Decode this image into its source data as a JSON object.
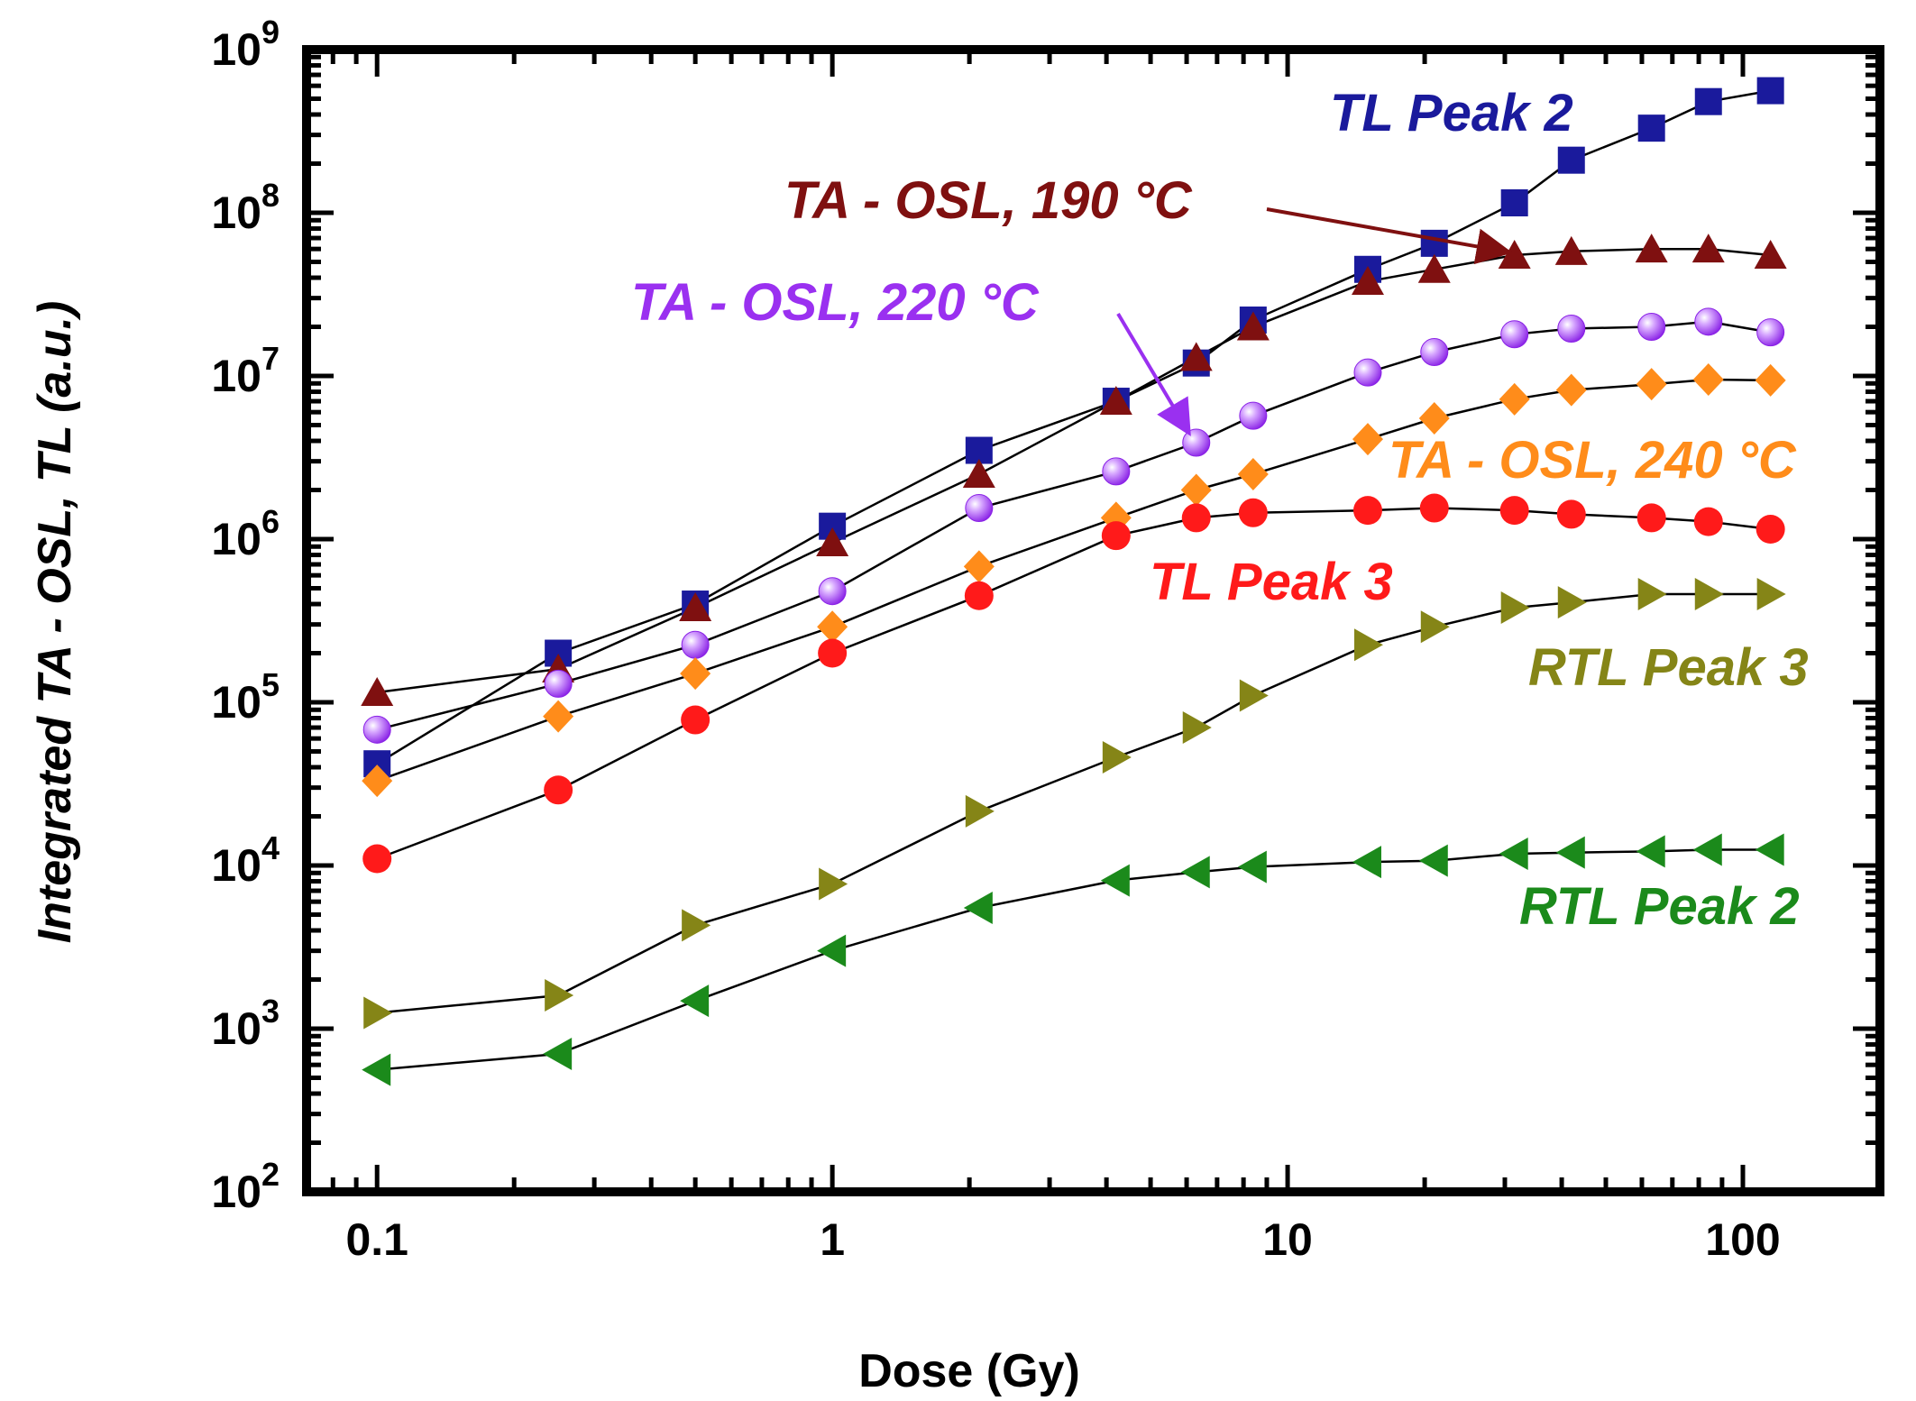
{
  "chart_data": {
    "type": "scatter",
    "title": "",
    "xlabel": "Dose (Gy)",
    "ylabel": "Integrated TA - OSL, TL (a.u.)",
    "xscale": "log",
    "yscale": "log",
    "xlim": [
      0.07,
      200
    ],
    "ylim": [
      100,
      1000000000
    ],
    "x_ticks": [
      {
        "value": 0.1,
        "label": "0.1"
      },
      {
        "value": 1,
        "label": "1"
      },
      {
        "value": 10,
        "label": "10"
      },
      {
        "value": 100,
        "label": "100"
      }
    ],
    "y_ticks": [
      {
        "value": 100,
        "base": "10",
        "exp": "2"
      },
      {
        "value": 1000,
        "base": "10",
        "exp": "3"
      },
      {
        "value": 10000,
        "base": "10",
        "exp": "4"
      },
      {
        "value": 100000,
        "base": "10",
        "exp": "5"
      },
      {
        "value": 1000000,
        "base": "10",
        "exp": "6"
      },
      {
        "value": 10000000,
        "base": "10",
        "exp": "7"
      },
      {
        "value": 100000000,
        "base": "10",
        "exp": "8"
      },
      {
        "value": 1000000000,
        "base": "10",
        "exp": "9"
      }
    ],
    "series": [
      {
        "name": "TL Peak 2",
        "color": "#1a1a9c",
        "marker": "square",
        "x": [
          0.1,
          0.25,
          0.5,
          1,
          2.1,
          4.2,
          6.3,
          8.4,
          15,
          21,
          31.5,
          42,
          63,
          84,
          115
        ],
        "y": [
          42000,
          200000,
          400000,
          1200000,
          3500000,
          7000000,
          12000000,
          22000000,
          45000000,
          65000000,
          115000000,
          210000000,
          330000000,
          480000000,
          560000000
        ]
      },
      {
        "name": "TA - OSL, 190 °C",
        "color": "#7f1010",
        "marker": "triangle-up",
        "x": [
          0.1,
          0.25,
          0.5,
          1,
          2.1,
          4.2,
          6.3,
          8.4,
          15,
          21,
          31.5,
          42,
          63,
          84,
          115
        ],
        "y": [
          115000,
          160000,
          380000,
          950000,
          2500000,
          7000000,
          13000000,
          20000000,
          38000000,
          45000000,
          55000000,
          58000000,
          60000000,
          60000000,
          55000000
        ]
      },
      {
        "name": "TA - OSL, 220 °C",
        "color": "#9a30f0",
        "marker": "sphere",
        "x": [
          0.1,
          0.25,
          0.5,
          1,
          2.1,
          4.2,
          6.3,
          8.4,
          15,
          21,
          31.5,
          42,
          63,
          84,
          115
        ],
        "y": [
          68000,
          130000,
          225000,
          480000,
          1550000,
          2600000,
          3900000,
          5700000,
          10500000,
          14000000,
          18000000,
          19500000,
          20000000,
          21500000,
          18500000
        ]
      },
      {
        "name": "TA - OSL, 240 °C",
        "color": "#ff8c1a",
        "marker": "diamond",
        "x": [
          0.1,
          0.25,
          0.5,
          1,
          2.1,
          4.2,
          6.3,
          8.4,
          15,
          21,
          31.5,
          42,
          63,
          84,
          115
        ],
        "y": [
          33000,
          82000,
          150000,
          290000,
          680000,
          1350000,
          2000000,
          2500000,
          4100000,
          5500000,
          7200000,
          8200000,
          8900000,
          9500000,
          9400000
        ]
      },
      {
        "name": "TL Peak 3",
        "color": "#ff1a1a",
        "marker": "circle",
        "x": [
          0.1,
          0.25,
          0.5,
          1,
          2.1,
          4.2,
          6.3,
          8.4,
          15,
          21,
          31.5,
          42,
          63,
          84,
          115
        ],
        "y": [
          11000,
          29000,
          78000,
          200000,
          450000,
          1050000,
          1350000,
          1450000,
          1500000,
          1550000,
          1500000,
          1420000,
          1350000,
          1280000,
          1150000
        ]
      },
      {
        "name": "RTL Peak 3",
        "color": "#858517",
        "marker": "triangle-right",
        "x": [
          0.1,
          0.25,
          0.5,
          1,
          2.1,
          4.2,
          6.3,
          8.4,
          15,
          21,
          31.5,
          42,
          63,
          84,
          115
        ],
        "y": [
          1250,
          1600,
          4300,
          7700,
          21500,
          46000,
          70000,
          110000,
          225000,
          290000,
          380000,
          410000,
          460000,
          460000,
          460000
        ]
      },
      {
        "name": "RTL Peak 2",
        "color": "#1b8a1b",
        "marker": "triangle-left",
        "x": [
          0.1,
          0.25,
          0.5,
          1,
          2.1,
          4.2,
          6.3,
          8.4,
          15,
          21,
          31.5,
          42,
          63,
          84,
          115
        ],
        "y": [
          560,
          700,
          1480,
          3000,
          5500,
          8100,
          9100,
          9800,
          10500,
          10700,
          11800,
          12000,
          12200,
          12500,
          12500
        ]
      }
    ],
    "annotations": [
      {
        "text": "TL Peak 2",
        "series": "TL Peak 2"
      },
      {
        "text": "TA - OSL, 190 °C",
        "series": "TA - OSL, 190 °C",
        "arrow_to": [
          31.5,
          55000000
        ]
      },
      {
        "text": "TA - OSL, 220 °C",
        "series": "TA - OSL, 220 °C",
        "arrow_to": [
          6.3,
          3900000
        ]
      },
      {
        "text": "TA - OSL, 240 °C",
        "series": "TA - OSL, 240 °C"
      },
      {
        "text": "TL Peak 3",
        "series": "TL Peak 3"
      },
      {
        "text": "RTL Peak 3",
        "series": "RTL Peak 3"
      },
      {
        "text": "RTL Peak 2",
        "series": "RTL Peak 2"
      }
    ]
  }
}
